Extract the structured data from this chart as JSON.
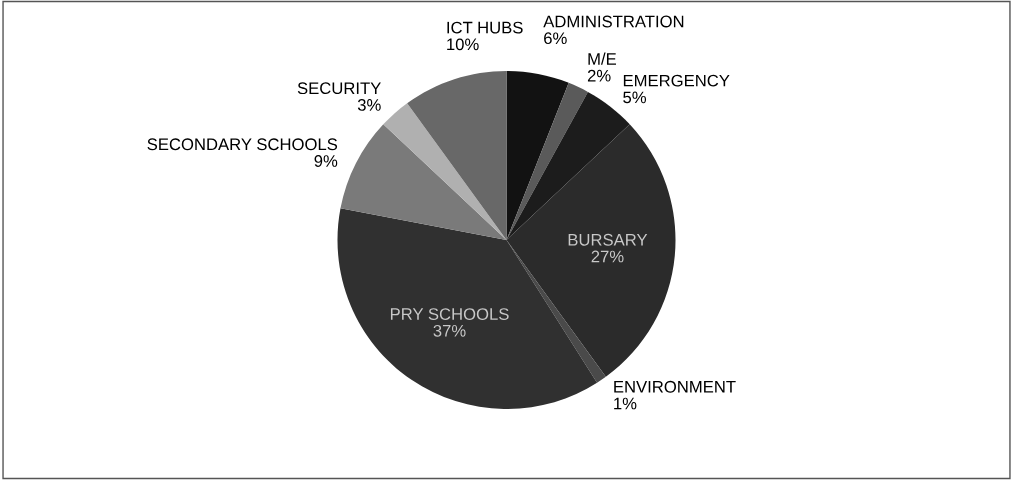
{
  "chart_data": {
    "type": "pie",
    "categories": [
      "ADMINISTRATION",
      "M/E",
      "EMERGENCY",
      "BURSARY",
      "ENVIRONMENT",
      "PRY SCHOOLS",
      "SECONDARY SCHOOLS",
      "SECURITY",
      "ICT HUBS"
    ],
    "values": [
      6,
      2,
      5,
      27,
      1,
      37,
      9,
      3,
      10
    ],
    "colors": [
      "#121212",
      "#5a5a5a",
      "#1c1c1c",
      "#2b2b2b",
      "#4a4a4a",
      "#303030",
      "#7a7a7a",
      "#b0b0b0",
      "#686868"
    ],
    "value_labels": [
      "6%",
      "2%",
      "5%",
      "27%",
      "1%",
      "37%",
      "9%",
      "3%",
      "10%"
    ]
  }
}
